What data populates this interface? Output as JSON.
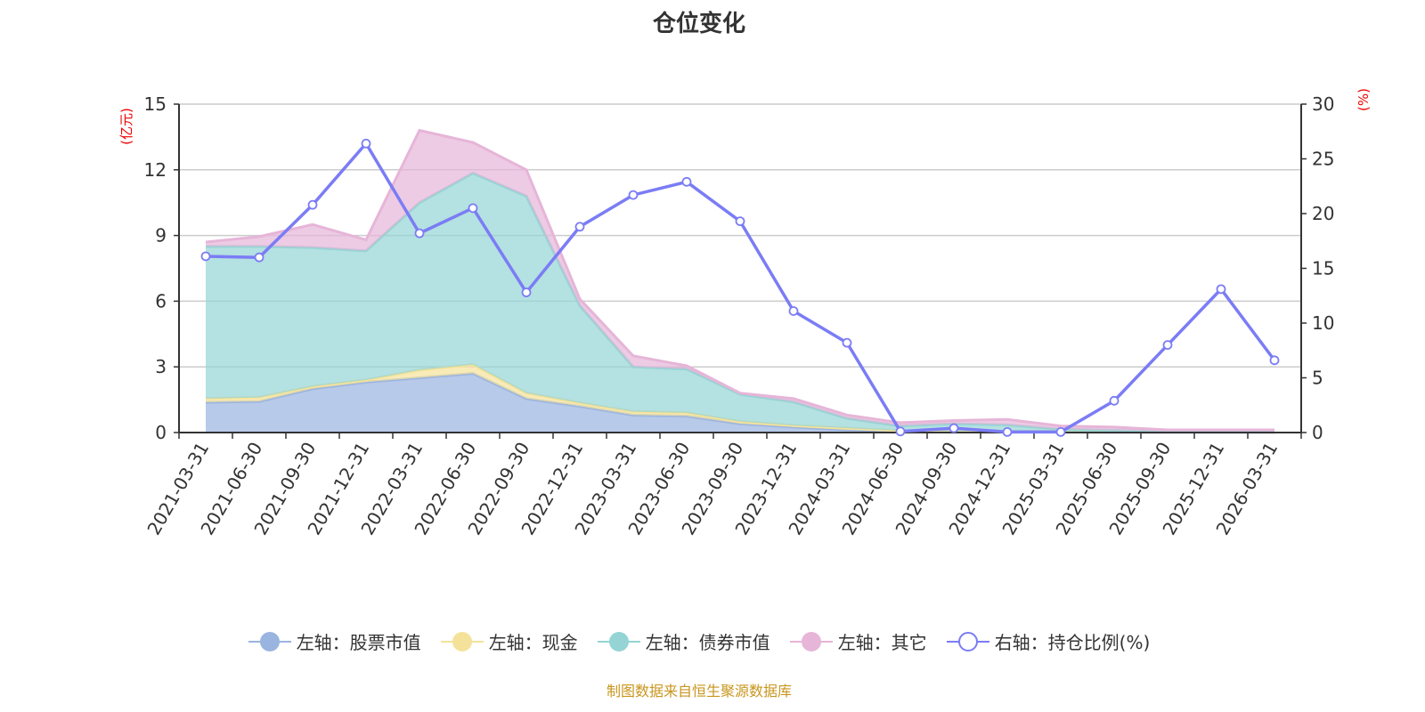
{
  "chart_data": {
    "type": "area",
    "title": "仓位变化",
    "ylabel_left": "(亿元)",
    "ylabel_right": "(%)",
    "ylim_left": [
      0,
      15
    ],
    "ylim_right": [
      0,
      30
    ],
    "yticks_left": [
      "0",
      "3",
      "6",
      "9",
      "12",
      "15"
    ],
    "yticks_right": [
      "0",
      "5",
      "10",
      "15",
      "20",
      "25",
      "30"
    ],
    "grid": true,
    "legend_position": "bottom",
    "categories": [
      "2021-03-31",
      "2021-06-30",
      "2021-09-30",
      "2021-12-31",
      "2022-03-31",
      "2022-06-30",
      "2022-09-30",
      "2022-12-31",
      "2023-03-31",
      "2023-06-30",
      "2023-09-30",
      "2023-12-31",
      "2024-03-31",
      "2024-06-30",
      "2024-09-30",
      "2024-12-31",
      "2025-03-31",
      "2025-06-30",
      "2025-09-30",
      "2025-12-31",
      "2026-03-31"
    ],
    "series": [
      {
        "name": "左轴：股票市值",
        "axis": "left",
        "stack": true,
        "color": "#9ab4e0",
        "values": [
          1.38,
          1.42,
          2.0,
          2.3,
          2.5,
          2.7,
          1.55,
          1.2,
          0.8,
          0.75,
          0.4,
          0.25,
          0.12,
          0.04,
          0.03,
          0.02,
          0.02,
          0.01,
          0.01,
          0.01,
          0.01
        ]
      },
      {
        "name": "左轴：现金",
        "axis": "left",
        "stack": true,
        "color": "#f5e29a",
        "values": [
          0.17,
          0.18,
          0.1,
          0.1,
          0.35,
          0.4,
          0.25,
          0.15,
          0.15,
          0.15,
          0.1,
          0.07,
          0.08,
          0.04,
          0.03,
          0.03,
          0.03,
          0.02,
          0.01,
          0.01,
          0.01
        ]
      },
      {
        "name": "左轴：债券市值",
        "axis": "left",
        "stack": true,
        "color": "#94d4d4",
        "values": [
          6.95,
          6.9,
          6.35,
          5.9,
          7.65,
          8.75,
          9.0,
          4.45,
          2.05,
          2.0,
          1.25,
          1.08,
          0.45,
          0.22,
          0.34,
          0.3,
          0.1,
          0.07,
          0.03,
          0.03,
          0.03
        ]
      },
      {
        "name": "左轴：其它",
        "axis": "left",
        "stack": true,
        "color": "#e6b5d8",
        "values": [
          0.2,
          0.45,
          1.05,
          0.5,
          3.3,
          1.4,
          1.2,
          0.3,
          0.5,
          0.15,
          0.05,
          0.15,
          0.15,
          0.15,
          0.15,
          0.25,
          0.15,
          0.15,
          0.07,
          0.07,
          0.07
        ]
      },
      {
        "name": "右轴：持仓比例(%)",
        "axis": "right",
        "stack": false,
        "color": "#7b7cf5",
        "values": [
          16.1,
          16.0,
          20.8,
          26.4,
          18.2,
          20.5,
          12.8,
          18.8,
          21.7,
          22.9,
          19.3,
          11.1,
          8.2,
          0.1,
          0.4,
          0.05,
          0.05,
          2.9,
          8.0,
          13.1,
          6.6
        ]
      }
    ]
  },
  "footer": "制图数据来自恒生聚源数据库"
}
